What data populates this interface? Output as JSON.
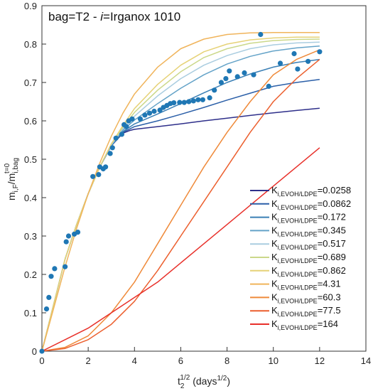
{
  "chart_data": {
    "type": "line",
    "title_prefix": "bag=T2 - ",
    "title_italic": "i",
    "title_suffix": "=Irganox 1010",
    "ylabel": {
      "main": "m",
      "sub": "i,F",
      "slash": "/m",
      "sub2": "i,bag",
      "sup": "t=0"
    },
    "xlabel": {
      "main": "t",
      "sub": "2",
      "sup": "1/2",
      "unit": " (days",
      "unit_sup": "1/2",
      "unit_end": ")"
    },
    "xlim": [
      0,
      14
    ],
    "ylim": [
      0,
      0.9
    ],
    "x_ticks": [
      0,
      2,
      4,
      6,
      8,
      10,
      12,
      14
    ],
    "y_ticks": [
      0,
      0.1,
      0.2,
      0.3,
      0.4,
      0.5,
      0.6,
      0.7,
      0.8,
      0.9
    ],
    "grid": false,
    "legend_position": "bottom-right",
    "legend_prefix": "K",
    "legend_sub": "i,EVOH/LDPE",
    "series": [
      {
        "name": "0.0258",
        "color": "#2e2f8a",
        "x": [
          0,
          0.5,
          1,
          1.5,
          2,
          2.5,
          3,
          3.5,
          3.8,
          4,
          5,
          6,
          7,
          8,
          9,
          10,
          11,
          12
        ],
        "y": [
          0,
          0.12,
          0.24,
          0.33,
          0.41,
          0.48,
          0.535,
          0.568,
          0.575,
          0.578,
          0.585,
          0.592,
          0.6,
          0.607,
          0.614,
          0.621,
          0.627,
          0.633
        ]
      },
      {
        "name": "0.0862",
        "color": "#2b5fa8",
        "x": [
          0,
          0.5,
          1,
          1.5,
          2,
          2.5,
          3,
          3.5,
          4,
          5,
          6,
          7,
          8,
          9,
          10,
          11,
          12
        ],
        "y": [
          0,
          0.12,
          0.24,
          0.33,
          0.41,
          0.48,
          0.535,
          0.57,
          0.585,
          0.6,
          0.617,
          0.635,
          0.654,
          0.672,
          0.69,
          0.7,
          0.708
        ]
      },
      {
        "name": "0.172",
        "color": "#3a7fb5",
        "x": [
          0,
          0.5,
          1,
          1.5,
          2,
          2.5,
          3,
          3.5,
          4,
          5,
          6,
          7,
          8,
          9,
          10,
          11,
          12
        ],
        "y": [
          0,
          0.12,
          0.24,
          0.33,
          0.41,
          0.48,
          0.535,
          0.572,
          0.592,
          0.618,
          0.645,
          0.673,
          0.7,
          0.722,
          0.74,
          0.752,
          0.76
        ]
      },
      {
        "name": "0.345",
        "color": "#64a3c8",
        "x": [
          0,
          0.5,
          1,
          1.5,
          2,
          2.5,
          3,
          3.5,
          4,
          5,
          6,
          7,
          8,
          9,
          10,
          11,
          12
        ],
        "y": [
          0,
          0.12,
          0.24,
          0.33,
          0.41,
          0.48,
          0.537,
          0.576,
          0.602,
          0.645,
          0.685,
          0.72,
          0.748,
          0.768,
          0.782,
          0.79,
          0.795
        ]
      },
      {
        "name": "0.517",
        "color": "#aacde0",
        "x": [
          0,
          0.5,
          1,
          1.5,
          2,
          2.5,
          3,
          3.5,
          4,
          5,
          6,
          7,
          8,
          9,
          10,
          11,
          12
        ],
        "y": [
          0,
          0.12,
          0.24,
          0.33,
          0.41,
          0.48,
          0.538,
          0.58,
          0.612,
          0.665,
          0.71,
          0.745,
          0.77,
          0.788,
          0.798,
          0.803,
          0.805
        ]
      },
      {
        "name": "0.689",
        "color": "#cbd88a",
        "x": [
          0,
          0.5,
          1,
          1.5,
          2,
          2.5,
          3,
          3.5,
          4,
          5,
          6,
          7,
          8,
          9,
          10,
          11,
          12
        ],
        "y": [
          0,
          0.12,
          0.24,
          0.33,
          0.41,
          0.48,
          0.54,
          0.584,
          0.622,
          0.68,
          0.728,
          0.765,
          0.788,
          0.802,
          0.809,
          0.812,
          0.813
        ]
      },
      {
        "name": "0.862",
        "color": "#e6d277",
        "x": [
          0,
          0.5,
          1,
          1.5,
          2,
          2.5,
          3,
          3.5,
          4,
          5,
          6,
          7,
          8,
          9,
          10,
          11,
          12
        ],
        "y": [
          0,
          0.12,
          0.24,
          0.33,
          0.41,
          0.48,
          0.54,
          0.588,
          0.632,
          0.695,
          0.745,
          0.78,
          0.8,
          0.811,
          0.816,
          0.818,
          0.818
        ]
      },
      {
        "name": "4.31",
        "color": "#f0b45b",
        "x": [
          0,
          0.5,
          1,
          1.5,
          2,
          2.5,
          3,
          3.5,
          4,
          5,
          6,
          7,
          8,
          9,
          10,
          11,
          12
        ],
        "y": [
          0,
          0.11,
          0.22,
          0.32,
          0.41,
          0.49,
          0.56,
          0.62,
          0.67,
          0.74,
          0.788,
          0.813,
          0.825,
          0.829,
          0.83,
          0.83,
          0.83
        ]
      },
      {
        "name": "60.3",
        "color": "#ef8a3a",
        "x": [
          0,
          1,
          2,
          3,
          4,
          5,
          6,
          7,
          8,
          9,
          10,
          11,
          12
        ],
        "y": [
          0,
          0.01,
          0.04,
          0.1,
          0.18,
          0.28,
          0.38,
          0.48,
          0.57,
          0.65,
          0.72,
          0.76,
          0.785
        ]
      },
      {
        "name": "77.5",
        "color": "#ec5f2e",
        "x": [
          0,
          1,
          2,
          3,
          4,
          5,
          6,
          7,
          8,
          9,
          10,
          11,
          12
        ],
        "y": [
          0,
          0.007,
          0.03,
          0.07,
          0.13,
          0.21,
          0.3,
          0.39,
          0.48,
          0.57,
          0.65,
          0.71,
          0.76
        ]
      },
      {
        "name": "164",
        "color": "#e8302a",
        "x": [
          0,
          1,
          2,
          3,
          4,
          5,
          6,
          7,
          8,
          9,
          10,
          11,
          12
        ],
        "y": [
          0,
          0.03,
          0.06,
          0.1,
          0.14,
          0.18,
          0.23,
          0.28,
          0.33,
          0.38,
          0.43,
          0.48,
          0.53
        ]
      }
    ],
    "experimental": {
      "color": "#1f77b4",
      "points": [
        [
          0.2,
          0.11
        ],
        [
          0.3,
          0.14
        ],
        [
          0.4,
          0.195
        ],
        [
          0.55,
          0.215
        ],
        [
          1.0,
          0.22
        ],
        [
          1.05,
          0.285
        ],
        [
          1.15,
          0.3
        ],
        [
          1.4,
          0.305
        ],
        [
          1.55,
          0.31
        ],
        [
          2.2,
          0.455
        ],
        [
          2.45,
          0.46
        ],
        [
          2.5,
          0.48
        ],
        [
          2.65,
          0.475
        ],
        [
          2.75,
          0.48
        ],
        [
          2.95,
          0.515
        ],
        [
          3.05,
          0.53
        ],
        [
          3.2,
          0.555
        ],
        [
          3.45,
          0.565
        ],
        [
          3.55,
          0.59
        ],
        [
          3.65,
          0.585
        ],
        [
          3.75,
          0.6
        ],
        [
          3.9,
          0.605
        ],
        [
          4.25,
          0.605
        ],
        [
          4.45,
          0.615
        ],
        [
          4.65,
          0.62
        ],
        [
          4.85,
          0.625
        ],
        [
          5.1,
          0.628
        ],
        [
          5.25,
          0.635
        ],
        [
          5.4,
          0.64
        ],
        [
          5.55,
          0.645
        ],
        [
          5.7,
          0.647
        ],
        [
          5.95,
          0.648
        ],
        [
          6.15,
          0.648
        ],
        [
          6.35,
          0.65
        ],
        [
          6.55,
          0.652
        ],
        [
          6.75,
          0.655
        ],
        [
          6.95,
          0.655
        ],
        [
          7.25,
          0.66
        ],
        [
          7.45,
          0.68
        ],
        [
          7.75,
          0.7
        ],
        [
          7.95,
          0.71
        ],
        [
          8.1,
          0.73
        ],
        [
          8.45,
          0.715
        ],
        [
          8.75,
          0.725
        ],
        [
          9.15,
          0.72
        ],
        [
          9.45,
          0.825
        ],
        [
          9.8,
          0.69
        ],
        [
          10.3,
          0.75
        ],
        [
          10.9,
          0.775
        ],
        [
          11.05,
          0.735
        ],
        [
          11.5,
          0.755
        ],
        [
          12.0,
          0.78
        ]
      ]
    }
  }
}
